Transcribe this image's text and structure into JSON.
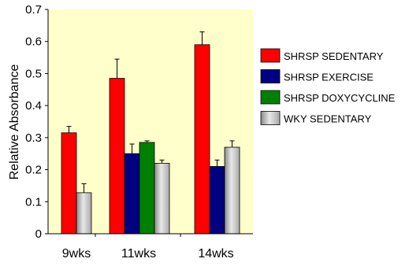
{
  "chart_data": {
    "type": "bar",
    "title": "",
    "xlabel": "",
    "ylabel": "Relative Absorbance",
    "ylim": [
      0,
      0.7
    ],
    "yticks": [
      "0",
      "0.1",
      "0.2",
      "0.3",
      "0.4",
      "0.5",
      "0.6",
      "0.7"
    ],
    "grid": false,
    "legend_position": "right",
    "plot_background": "#FFFFCC",
    "categories": [
      "9wks",
      "11wks",
      "14wks"
    ],
    "series": [
      {
        "name": "SHRSP SEDENTARY",
        "color": "#FF0000",
        "values": [
          0.315,
          0.485,
          0.59
        ],
        "errors": [
          0.02,
          0.06,
          0.04
        ]
      },
      {
        "name": "SHRSP EXERCISE",
        "color": "#000080",
        "values": [
          null,
          0.25,
          0.21
        ],
        "errors": [
          null,
          0.03,
          0.02
        ]
      },
      {
        "name": "SHRSP DOXYCYCLINE",
        "color": "#008000",
        "values": [
          null,
          0.285,
          null
        ],
        "errors": [
          null,
          0.005,
          null
        ]
      },
      {
        "name": "WKY SEDENTARY",
        "color": "#C0C0C0",
        "values": [
          0.128,
          0.22,
          0.27
        ],
        "errors": [
          0.028,
          0.01,
          0.02
        ]
      }
    ]
  }
}
